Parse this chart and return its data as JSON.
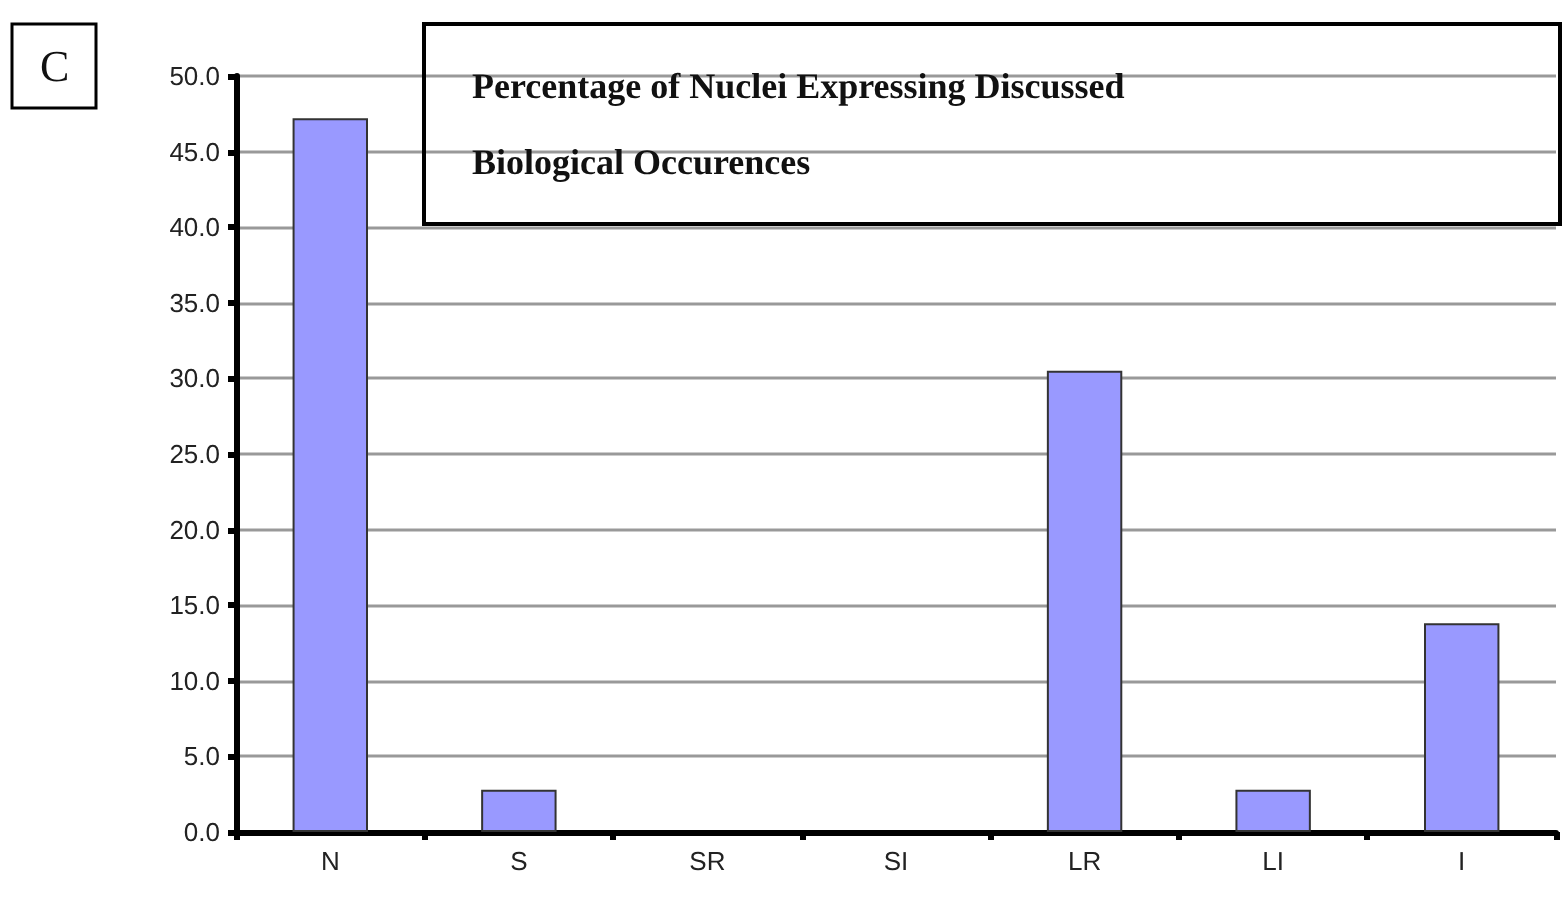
{
  "chart_data": {
    "type": "bar",
    "title": "Percentage of Nuclei Expressing Discussed\nBiological Occurences",
    "annotations": [
      "C"
    ],
    "categories": [
      "N",
      "S",
      "SR",
      "SI",
      "LR",
      "LI",
      "I"
    ],
    "values": [
      47.2,
      2.8,
      0,
      0,
      30.5,
      2.8,
      13.8
    ],
    "color": "#9999ff",
    "ylim": [
      0,
      50
    ],
    "yticks": [
      {
        "value": 0,
        "label": "0.0"
      },
      {
        "value": 5,
        "label": "5.0"
      },
      {
        "value": 10,
        "label": "10.0"
      },
      {
        "value": 15,
        "label": "15.0"
      },
      {
        "value": 20,
        "label": "20.0"
      },
      {
        "value": 25,
        "label": "25.0"
      },
      {
        "value": 30,
        "label": "30.0"
      },
      {
        "value": 35,
        "label": "35.0"
      },
      {
        "value": 40,
        "label": "40.0"
      },
      {
        "value": 45,
        "label": "45.0"
      },
      {
        "value": 50,
        "label": "50.0"
      }
    ],
    "grid": "y"
  }
}
